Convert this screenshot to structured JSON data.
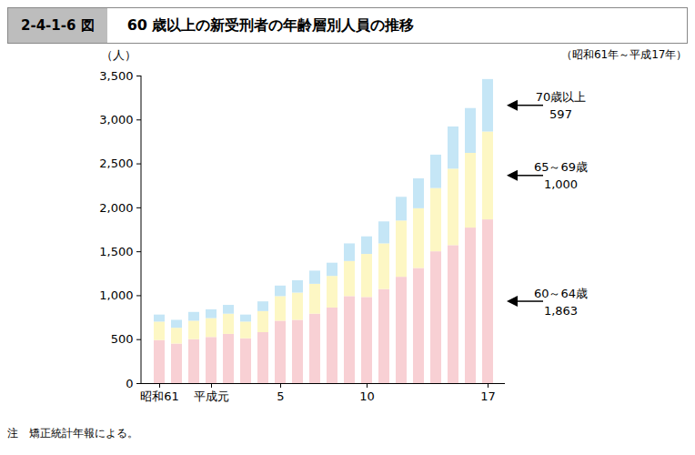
{
  "chart_data": {
    "type": "bar",
    "stacked": true,
    "figure_number": "2-4-1-6 図",
    "title": "60 歳以上の新受刑者の年齢層別人員の推移",
    "subtitle": "（昭和61年～平成17年）",
    "y_label": "（人）",
    "note": "注　矯正統計年報による。",
    "categories": [
      "昭和61",
      null,
      null,
      "平成元",
      null,
      null,
      null,
      "5",
      null,
      null,
      null,
      null,
      "10",
      null,
      null,
      null,
      null,
      null,
      null,
      "17"
    ],
    "series": [
      {
        "name": "60～64歳",
        "color": "#f8d0d4",
        "values": [
          490,
          450,
          500,
          525,
          560,
          510,
          580,
          710,
          720,
          790,
          860,
          990,
          980,
          1070,
          1210,
          1310,
          1500,
          1570,
          1770,
          1863
        ]
      },
      {
        "name": "65～69歳",
        "color": "#fdf7c4",
        "values": [
          210,
          180,
          210,
          215,
          230,
          190,
          240,
          280,
          310,
          340,
          360,
          400,
          490,
          520,
          640,
          680,
          720,
          870,
          850,
          1000
        ]
      },
      {
        "name": "70歳以上",
        "color": "#c5e6f6",
        "values": [
          80,
          90,
          100,
          100,
          100,
          80,
          110,
          120,
          140,
          150,
          150,
          200,
          200,
          250,
          270,
          340,
          380,
          480,
          510,
          597
        ]
      }
    ],
    "ylim": [
      0,
      3500
    ],
    "yticks": [
      0,
      500,
      {
        "value": 1000,
        "label": "1,000"
      },
      {
        "value": 1500,
        "label": "1,500"
      },
      {
        "value": 2000,
        "label": "2,000"
      },
      {
        "value": 2500,
        "label": "2,500"
      },
      {
        "value": 3000,
        "label": "3,000"
      },
      {
        "value": 3500,
        "label": "3,500"
      }
    ],
    "grid": false
  }
}
